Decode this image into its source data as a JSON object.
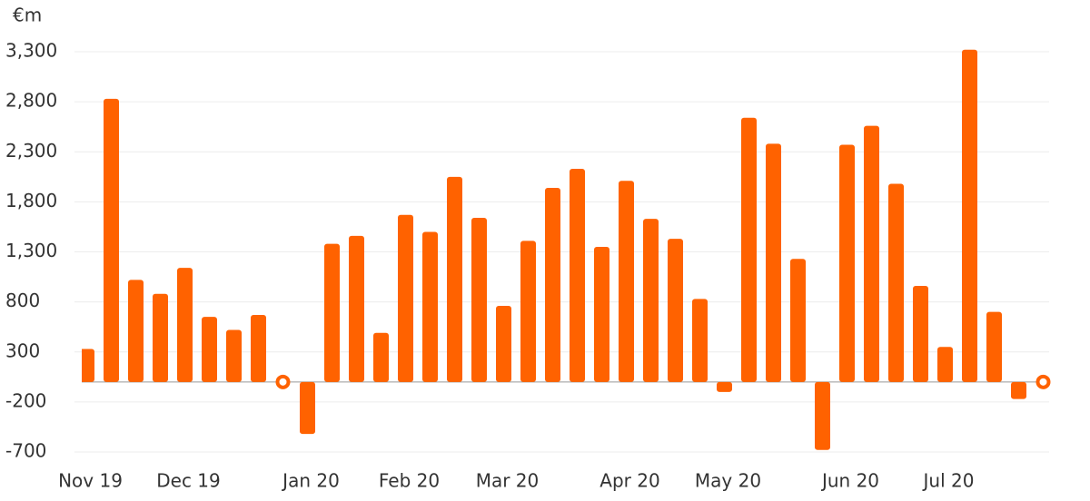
{
  "chart_data": {
    "type": "bar",
    "unit_label": "€m",
    "categories": [
      "Nov 19",
      null,
      null,
      null,
      "Dec 19",
      null,
      null,
      null,
      null,
      "Jan 20",
      null,
      null,
      null,
      "Feb 20",
      null,
      null,
      null,
      "Mar 20",
      null,
      null,
      null,
      null,
      "Apr 20",
      null,
      null,
      null,
      "May 20",
      null,
      null,
      null,
      null,
      "Jun 20",
      null,
      null,
      null,
      "Jul 20",
      null,
      null,
      null,
      null
    ],
    "values": [
      330,
      2830,
      1020,
      880,
      1140,
      650,
      520,
      670,
      0,
      -520,
      1380,
      1460,
      490,
      1670,
      1500,
      2050,
      1640,
      760,
      1410,
      1940,
      2130,
      1350,
      2010,
      1630,
      1430,
      830,
      -100,
      2640,
      2380,
      1230,
      -680,
      2370,
      2560,
      1980,
      960,
      350,
      3320,
      700,
      -170,
      0
    ],
    "color": "#ff6200",
    "ylim": [
      -700,
      3300
    ],
    "yticks": [
      {
        "value": -700,
        "label": "-700"
      },
      {
        "value": -200,
        "label": "-200"
      },
      300,
      800,
      {
        "value": 1300,
        "label": "1,300"
      },
      {
        "value": 1800,
        "label": "1,800"
      },
      {
        "value": 2300,
        "label": "2,300"
      },
      {
        "value": 2800,
        "label": "2,800"
      },
      {
        "value": 3300,
        "label": "3,300"
      }
    ],
    "grid": true
  }
}
